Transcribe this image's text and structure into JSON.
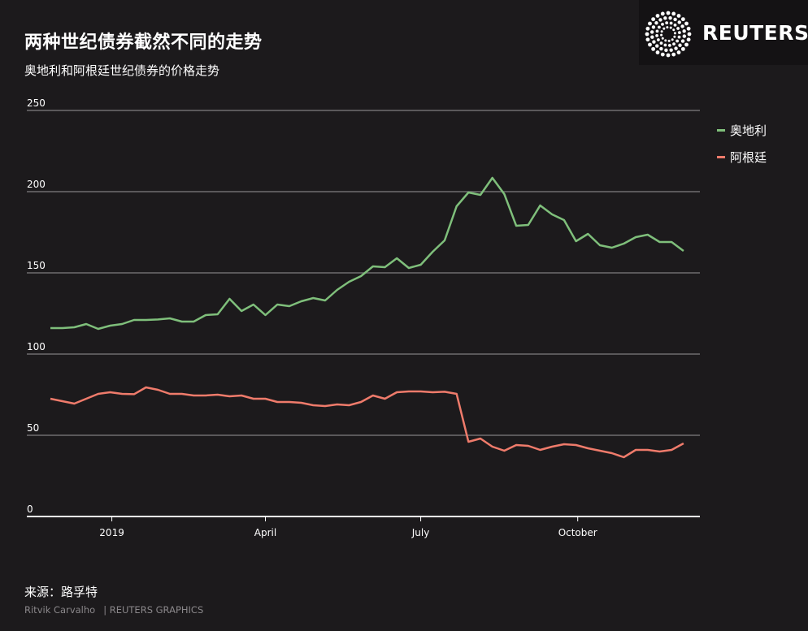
{
  "header": {
    "title": "两种世纪债券截然不同的走势",
    "subtitle": "奥地利和阿根廷世纪债券的价格走势"
  },
  "brand": {
    "name": "REUTERS",
    "logo_icon": "reuters-dot-logo-icon"
  },
  "footer": {
    "source": "来源：路孚特",
    "author": "Ritvik Carvalho",
    "credit": "| REUTERS GRAPHICS"
  },
  "colors": {
    "background": "#1c1a1c",
    "austria": "#7fbf7b",
    "argentina": "#ef7b6b",
    "grid": "#6e6c6e"
  },
  "chart_data": {
    "type": "line",
    "title": "两种世纪债券截然不同的走势",
    "subtitle": "奥地利和阿根廷世纪债券的价格走势",
    "ylim": [
      0,
      250
    ],
    "yticks": [
      0,
      50,
      100,
      150,
      200,
      250
    ],
    "xticks": [
      {
        "label": "2019",
        "date": "2019-01-01"
      },
      {
        "label": "April",
        "date": "2019-04-01"
      },
      {
        "label": "July",
        "date": "2019-07-01"
      },
      {
        "label": "October",
        "date": "2019-10-01"
      }
    ],
    "grid": true,
    "legend": "right",
    "series": [
      {
        "name": "奥地利",
        "color": "#7fbf7b",
        "points": [
          [
            "2018-11-26",
            116
          ],
          [
            "2018-12-03",
            116
          ],
          [
            "2018-12-10",
            116.5
          ],
          [
            "2018-12-17",
            118.5
          ],
          [
            "2018-12-24",
            115.5
          ],
          [
            "2018-12-31",
            117.5
          ],
          [
            "2019-01-07",
            118.5
          ],
          [
            "2019-01-14",
            121
          ],
          [
            "2019-01-21",
            121
          ],
          [
            "2019-01-28",
            121.3
          ],
          [
            "2019-02-04",
            122
          ],
          [
            "2019-02-11",
            120
          ],
          [
            "2019-02-18",
            120
          ],
          [
            "2019-02-25",
            124
          ],
          [
            "2019-03-04",
            124.5
          ],
          [
            "2019-03-11",
            134
          ],
          [
            "2019-03-18",
            126.5
          ],
          [
            "2019-03-25",
            130.5
          ],
          [
            "2019-04-01",
            124
          ],
          [
            "2019-04-08",
            130.5
          ],
          [
            "2019-04-15",
            129.5
          ],
          [
            "2019-04-22",
            132.5
          ],
          [
            "2019-04-29",
            134.5
          ],
          [
            "2019-05-06",
            133
          ],
          [
            "2019-05-13",
            139.5
          ],
          [
            "2019-05-20",
            144.5
          ],
          [
            "2019-05-27",
            148
          ],
          [
            "2019-06-03",
            154
          ],
          [
            "2019-06-10",
            153.5
          ],
          [
            "2019-06-17",
            159
          ],
          [
            "2019-06-24",
            153
          ],
          [
            "2019-07-01",
            155
          ],
          [
            "2019-07-08",
            163
          ],
          [
            "2019-07-15",
            170
          ],
          [
            "2019-07-22",
            191
          ],
          [
            "2019-07-29",
            199.5
          ],
          [
            "2019-08-05",
            198
          ],
          [
            "2019-08-12",
            208.5
          ],
          [
            "2019-08-19",
            198.5
          ],
          [
            "2019-08-26",
            179
          ],
          [
            "2019-09-02",
            179.5
          ],
          [
            "2019-09-09",
            191.5
          ],
          [
            "2019-09-16",
            186
          ],
          [
            "2019-09-23",
            182.5
          ],
          [
            "2019-09-30",
            169.5
          ],
          [
            "2019-10-07",
            174
          ],
          [
            "2019-10-14",
            167
          ],
          [
            "2019-10-21",
            165.5
          ],
          [
            "2019-10-28",
            168
          ],
          [
            "2019-11-04",
            172
          ],
          [
            "2019-11-11",
            173.5
          ],
          [
            "2019-11-18",
            169
          ],
          [
            "2019-11-25",
            169
          ],
          [
            "2019-12-02",
            163.5
          ]
        ]
      },
      {
        "name": "阿根廷",
        "color": "#ef7b6b",
        "points": [
          [
            "2018-11-26",
            72.5
          ],
          [
            "2018-12-03",
            71
          ],
          [
            "2018-12-10",
            69.5
          ],
          [
            "2018-12-17",
            72.5
          ],
          [
            "2018-12-24",
            75.5
          ],
          [
            "2018-12-31",
            76.5
          ],
          [
            "2019-01-07",
            75.5
          ],
          [
            "2019-01-14",
            75.3
          ],
          [
            "2019-01-21",
            79.5
          ],
          [
            "2019-01-28",
            78
          ],
          [
            "2019-02-04",
            75.5
          ],
          [
            "2019-02-11",
            75.5
          ],
          [
            "2019-02-18",
            74.5
          ],
          [
            "2019-02-25",
            74.5
          ],
          [
            "2019-03-04",
            75
          ],
          [
            "2019-03-11",
            74
          ],
          [
            "2019-03-18",
            74.5
          ],
          [
            "2019-03-25",
            72.5
          ],
          [
            "2019-04-01",
            72.5
          ],
          [
            "2019-04-08",
            70.5
          ],
          [
            "2019-04-15",
            70.5
          ],
          [
            "2019-04-22",
            70
          ],
          [
            "2019-04-29",
            68.5
          ],
          [
            "2019-05-06",
            68
          ],
          [
            "2019-05-13",
            69
          ],
          [
            "2019-05-20",
            68.5
          ],
          [
            "2019-05-27",
            70.5
          ],
          [
            "2019-06-03",
            74.5
          ],
          [
            "2019-06-10",
            72.5
          ],
          [
            "2019-06-17",
            76.5
          ],
          [
            "2019-06-24",
            77
          ],
          [
            "2019-07-01",
            77
          ],
          [
            "2019-07-08",
            76.5
          ],
          [
            "2019-07-15",
            76.8
          ],
          [
            "2019-07-22",
            75.5
          ],
          [
            "2019-07-29",
            46
          ],
          [
            "2019-08-05",
            48
          ],
          [
            "2019-08-12",
            43
          ],
          [
            "2019-08-19",
            40.5
          ],
          [
            "2019-08-26",
            44
          ],
          [
            "2019-09-02",
            43.5
          ],
          [
            "2019-09-09",
            41
          ],
          [
            "2019-09-16",
            43
          ],
          [
            "2019-09-23",
            44.5
          ],
          [
            "2019-09-30",
            44
          ],
          [
            "2019-10-07",
            42
          ],
          [
            "2019-10-14",
            40.5
          ],
          [
            "2019-10-21",
            39
          ],
          [
            "2019-10-28",
            36.5
          ],
          [
            "2019-11-04",
            41
          ],
          [
            "2019-11-11",
            41
          ],
          [
            "2019-11-18",
            40
          ],
          [
            "2019-11-25",
            41
          ],
          [
            "2019-12-02",
            45
          ]
        ]
      }
    ]
  }
}
